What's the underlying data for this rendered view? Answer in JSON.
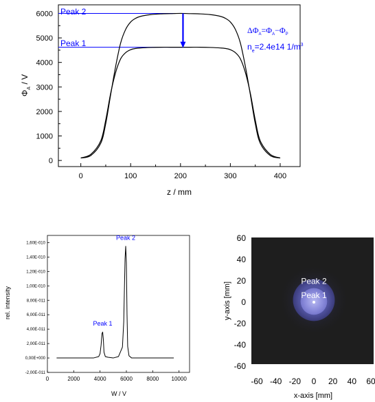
{
  "chart_data": [
    {
      "type": "line",
      "xlabel": "z / mm",
      "ylabel_main": "Φ",
      "ylabel_sub": "A",
      "ylabel_unit": " / V",
      "xlim": [
        -45,
        440
      ],
      "ylim": [
        -250,
        6350
      ],
      "x_ticks": [
        0,
        100,
        200,
        300,
        400
      ],
      "y_ticks": [
        0,
        1000,
        2000,
        3000,
        4000,
        5000,
        6000
      ],
      "series": [
        {
          "name": "Peak 2",
          "x": [
            0,
            20,
            40,
            50,
            60,
            70,
            80,
            90,
            100,
            110,
            120,
            140,
            160,
            180,
            200,
            220,
            240,
            260,
            280,
            290,
            300,
            310,
            320,
            330,
            340,
            350,
            360,
            380,
            400
          ],
          "y": [
            100,
            200,
            700,
            1500,
            2700,
            3850,
            4800,
            5350,
            5650,
            5800,
            5880,
            5950,
            5980,
            5990,
            6000,
            5990,
            5980,
            5950,
            5880,
            5800,
            5650,
            5350,
            4800,
            3850,
            2700,
            1500,
            700,
            200,
            100
          ]
        },
        {
          "name": "Peak 1",
          "x": [
            0,
            20,
            40,
            50,
            60,
            70,
            80,
            90,
            100,
            110,
            120,
            140,
            160,
            180,
            200,
            220,
            240,
            260,
            280,
            290,
            300,
            310,
            320,
            330,
            340,
            350,
            360,
            380,
            400
          ],
          "y": [
            100,
            250,
            800,
            1650,
            2750,
            3600,
            4150,
            4400,
            4520,
            4570,
            4590,
            4610,
            4620,
            4620,
            4620,
            4620,
            4620,
            4610,
            4590,
            4570,
            4520,
            4400,
            4150,
            3600,
            2750,
            1650,
            800,
            250,
            100
          ]
        }
      ],
      "hlines": [
        {
          "label": "Peak 2",
          "y": 6000
        },
        {
          "label": "Peak 1",
          "y": 4620
        }
      ],
      "arrow": {
        "x": 205,
        "from": 6000,
        "to": 4620
      },
      "annotation": {
        "delta_phi": "ΔΦ",
        "sub_a1": "A",
        "eq": "=Φ",
        "sub_a2": "A",
        "minus": "−Φ",
        "sub_p": "P",
        "ne_text": "n",
        "ne_sub": "e",
        "ne_value": "=2.4e14 1/m",
        "ne_sup": "3"
      },
      "color": "#000000",
      "annotation_color": "#0000ff"
    },
    {
      "type": "line",
      "xlabel": "W / V",
      "ylabel": "rel. intensity",
      "xlim": [
        0,
        10800
      ],
      "ylim": [
        -2e-11,
        1.7e-10
      ],
      "x_ticks": [
        0,
        2000,
        4000,
        6000,
        8000,
        10000
      ],
      "y_tick_labels": [
        "-2,00E-011",
        "0,00E+000",
        "2,00E-011",
        "4,00E-011",
        "6,00E-011",
        "8,00E-011",
        "1,00E-010",
        "1,20E-010",
        "1,40E-010",
        "1,60E-010"
      ],
      "y_tick_values": [
        -2e-11,
        0,
        2e-11,
        4e-11,
        6e-11,
        8e-11,
        1e-10,
        1.2e-10,
        1.4e-10,
        1.6e-10
      ],
      "series": [
        {
          "x": [
            700,
            1500,
            2500,
            3500,
            3900,
            4000,
            4080,
            4150,
            4200,
            4250,
            4300,
            4400,
            4600,
            5000,
            5400,
            5700,
            5800,
            5850,
            5900,
            5950,
            6000,
            6050,
            6100,
            6200,
            6400,
            7000,
            8000,
            9000,
            9600
          ],
          "y": [
            0,
            0,
            0,
            0,
            2e-12,
            6e-12,
            1.8e-11,
            3.4e-11,
            3.6e-11,
            2.6e-11,
            8e-12,
            2e-12,
            1e-12,
            0,
            2e-12,
            1.5e-11,
            5e-11,
            9.5e-11,
            1.38e-10,
            1.55e-10,
            1.32e-10,
            6e-11,
            1.6e-11,
            3e-12,
            0,
            0,
            0,
            0,
            0
          ]
        }
      ],
      "peak_labels": [
        {
          "text": "Peak 1",
          "x": 4200
        },
        {
          "text": "Peak 2",
          "x": 5950
        }
      ],
      "color": "#000000",
      "annotation_color": "#0000ff"
    },
    {
      "type": "heatmap",
      "xlabel": "x-axis [mm]",
      "ylabel": "y-axis [mm]",
      "xlim": [
        -60,
        60
      ],
      "ylim": [
        -60,
        60
      ],
      "x_ticks": [
        -60,
        -40,
        -20,
        0,
        20,
        40,
        60
      ],
      "y_ticks": [
        60,
        40,
        20,
        0,
        -20,
        -40,
        -60
      ],
      "x_tick_labels": [
        "-60",
        "-40",
        "-20",
        "0",
        "20",
        "40",
        "60"
      ],
      "y_tick_labels": [
        "60",
        "40",
        "20",
        "0",
        "-20",
        "-40",
        "-60"
      ],
      "rings": [
        {
          "label": "Peak 2",
          "radius_mm": 22,
          "color": "#4a4ba0"
        },
        {
          "label": "Peak 1",
          "radius_mm": 14,
          "color": "#8d8edc"
        }
      ],
      "background_color": "#1e1e1e"
    }
  ]
}
